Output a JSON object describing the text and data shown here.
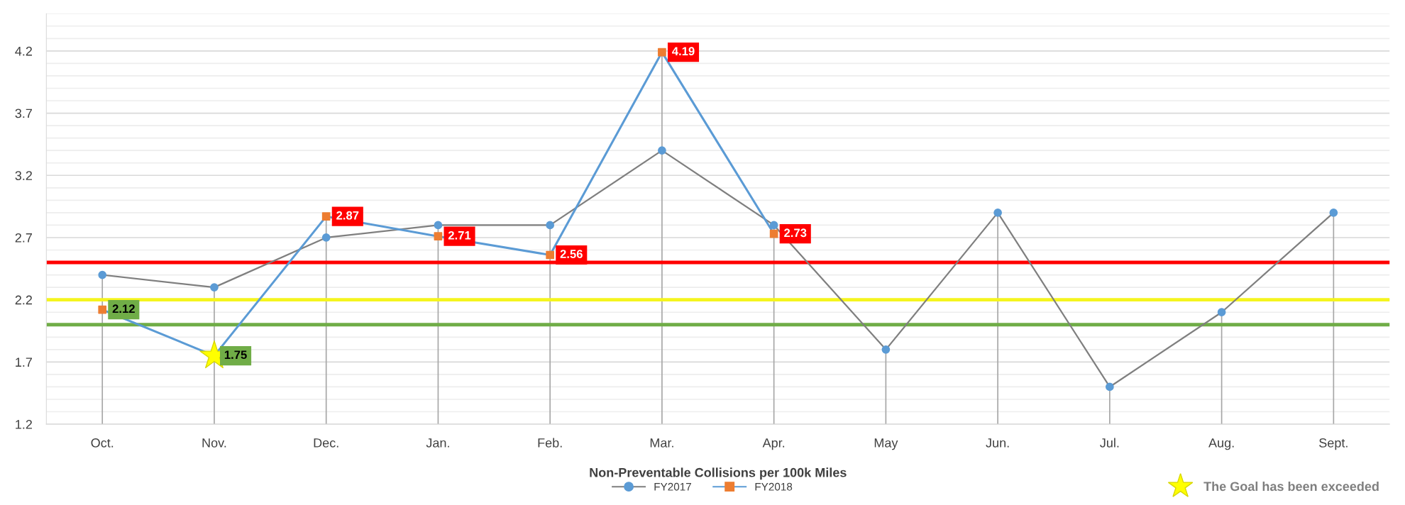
{
  "chart_data": {
    "type": "line",
    "xlabel": "Non-Preventable Collisions per 100k Miles",
    "categories": [
      "Oct.",
      "Nov.",
      "Dec.",
      "Jan.",
      "Feb.",
      "Mar.",
      "Apr.",
      "May",
      "Jun.",
      "Jul.",
      "Aug.",
      "Sept."
    ],
    "series": [
      {
        "name": "FY2017",
        "type": "line",
        "color": "#7f7f7f",
        "colors": [
          "#5b9bd5",
          "#5b9bd5",
          "#5b9bd5",
          "#5b9bd5",
          "#5b9bd5",
          "#5b9bd5",
          "#5b9bd5",
          "#5b9bd5",
          "#5b9bd5",
          "#5b9bd5",
          "#5b9bd5",
          "#5b9bd5"
        ],
        "marker": "circle",
        "values": [
          2.4,
          2.3,
          2.7,
          2.8,
          2.8,
          3.4,
          2.8,
          1.8,
          2.9,
          1.5,
          2.1,
          2.9
        ],
        "errors": [
          [
            1.2,
            2.4
          ],
          [
            1.2,
            2.3
          ],
          null,
          [
            1.2,
            2.8
          ],
          [
            1.2,
            2.8
          ],
          null,
          [
            1.2,
            2.8
          ],
          [
            1.2,
            1.8
          ],
          [
            1.2,
            2.9
          ],
          [
            1.2,
            1.5
          ],
          [
            1.2,
            2.1
          ],
          [
            1.2,
            2.9
          ]
        ]
      },
      {
        "name": "FY2018",
        "type": "line",
        "color": "#5b9bd5",
        "colors": [
          "#ed7d31",
          "#ed7d31",
          "#ed7d31",
          "#ed7d31",
          "#ed7d31",
          "#ed7d31",
          "#ed7d31",
          null,
          null,
          null,
          null,
          null
        ],
        "marker": "square",
        "values": [
          2.12,
          1.75,
          2.87,
          2.71,
          2.56,
          4.19,
          2.73,
          null,
          null,
          null,
          null,
          null
        ],
        "errors": [
          null,
          null,
          [
            1.2,
            2.87
          ],
          null,
          null,
          [
            1.2,
            4.19
          ],
          null,
          null,
          null,
          null,
          null,
          null
        ],
        "value_labels": [
          "2.12",
          "1.75",
          "2.87",
          "2.71",
          "2.56",
          "4.19",
          "2.73",
          null,
          null,
          null,
          null,
          null
        ]
      },
      {
        "name": "The Goal has been exceeded",
        "type": "scatter",
        "color": "#ffff00",
        "marker": "star",
        "x": [
          "Nov."
        ],
        "values": [
          1.75
        ]
      }
    ],
    "ref_lines": [
      {
        "axis": "y",
        "value": 2.5,
        "color": "#ff0000"
      },
      {
        "axis": "y",
        "value": 2.2,
        "color": "#f5f51e"
      },
      {
        "axis": "y",
        "value": 2.0,
        "color": "#70ad47"
      }
    ],
    "ylim": [
      1.2,
      4.5
    ],
    "yticks": [
      1.2,
      {
        "value": 1.3,
        "label": null
      },
      {
        "value": 1.4,
        "label": null
      },
      {
        "value": 1.5,
        "label": null
      },
      {
        "value": 1.6,
        "label": null
      },
      1.7,
      {
        "value": 1.8,
        "label": null
      },
      {
        "value": 1.9,
        "label": null
      },
      {
        "value": 2.0,
        "label": null
      },
      {
        "value": 2.1,
        "label": null
      },
      2.2,
      {
        "value": 2.3,
        "label": null
      },
      {
        "value": 2.4,
        "label": null
      },
      {
        "value": 2.5,
        "label": null
      },
      {
        "value": 2.6,
        "label": null
      },
      2.7,
      {
        "value": 2.8,
        "label": null
      },
      {
        "value": 2.9,
        "label": null
      },
      {
        "value": 3.0,
        "label": null
      },
      {
        "value": 3.1,
        "label": null
      },
      3.2,
      {
        "value": 3.3,
        "label": null
      },
      {
        "value": 3.4,
        "label": null
      },
      {
        "value": 3.5,
        "label": null
      },
      {
        "value": 3.6,
        "label": null
      },
      3.7,
      {
        "value": 3.8,
        "label": null
      },
      {
        "value": 3.9,
        "label": null
      },
      {
        "value": 4.0,
        "label": null
      },
      {
        "value": 4.1,
        "label": null
      },
      4.2,
      {
        "value": 4.3,
        "label": null
      },
      {
        "value": 4.4,
        "label": null
      },
      {
        "value": 4.5,
        "label": null
      }
    ],
    "grid": "y",
    "legend": "bottom"
  }
}
